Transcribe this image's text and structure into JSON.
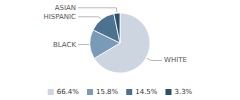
{
  "chart_data": {
    "type": "pie",
    "categories": [
      "WHITE",
      "BLACK",
      "HISPANIC",
      "ASIAN"
    ],
    "values": [
      66.4,
      15.8,
      14.5,
      3.3
    ],
    "value_labels": [
      "66.4%",
      "15.8%",
      "14.5%",
      "3.3%"
    ],
    "colors": [
      "#cdd5e0",
      "#7a9bb8",
      "#4d728f",
      "#2b4f6e"
    ],
    "legend": "bottom"
  }
}
